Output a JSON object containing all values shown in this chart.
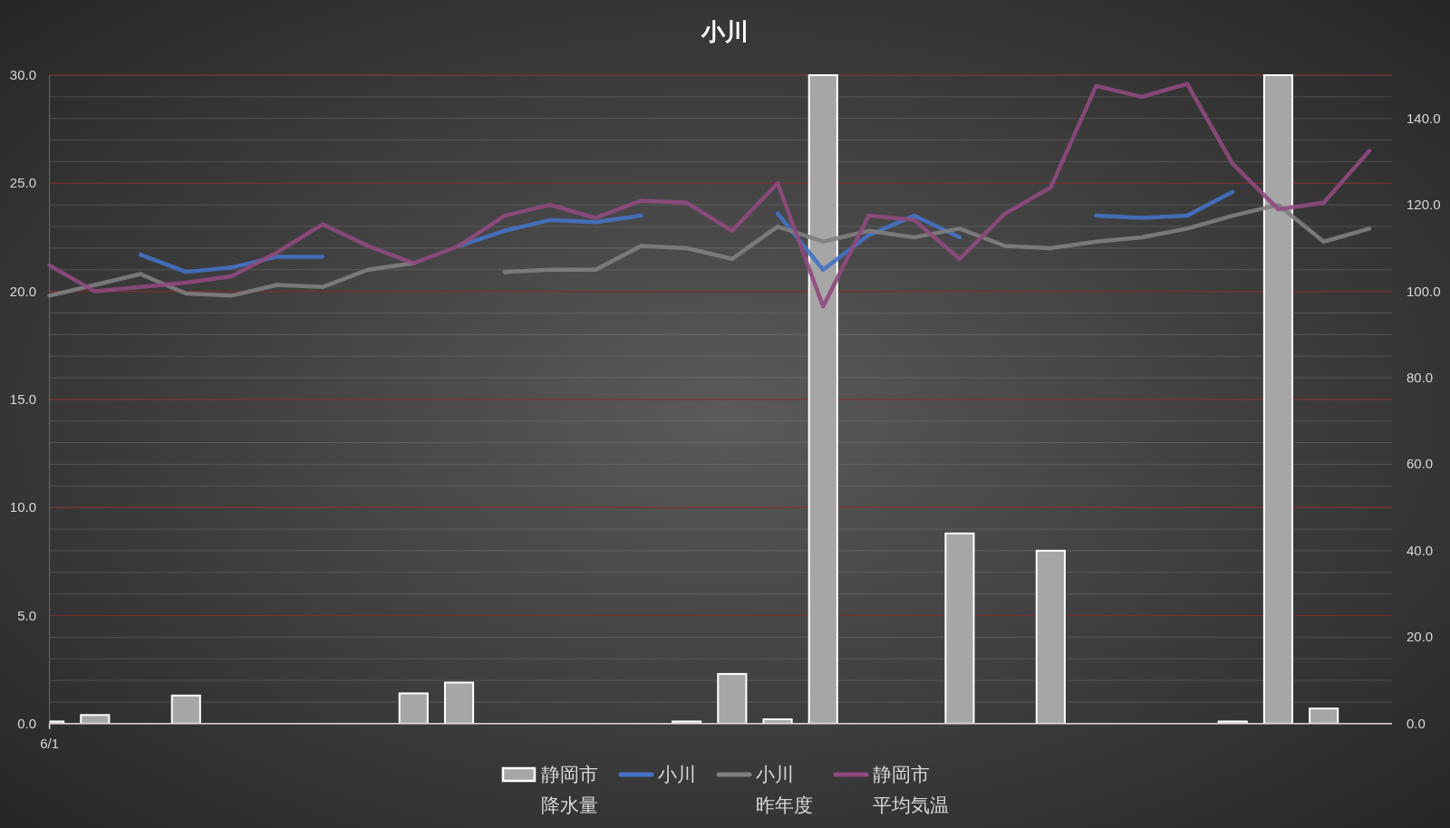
{
  "chart_data": {
    "type": "line",
    "title": "小川",
    "categories": [
      "6/1",
      null,
      null,
      null,
      null,
      null,
      null,
      null,
      null,
      null,
      null,
      null,
      null,
      null,
      null,
      null,
      null,
      null,
      null,
      null,
      null,
      null,
      null,
      null,
      null,
      null,
      null,
      null,
      null,
      null
    ],
    "ylim": [
      0,
      30
    ],
    "yticks": [
      {
        "value": 0,
        "label": "0.0"
      },
      {
        "value": 5,
        "label": "5.0"
      },
      {
        "value": 10,
        "label": "10.0"
      },
      {
        "value": 15,
        "label": "15.0"
      },
      {
        "value": 20,
        "label": "20.0"
      },
      {
        "value": 25,
        "label": "25.0"
      },
      {
        "value": 30,
        "label": "30.0"
      }
    ],
    "y2lim": [
      0,
      150
    ],
    "y2ticks": [
      {
        "value": 0,
        "label": "0.0"
      },
      {
        "value": 20,
        "label": "20.0"
      },
      {
        "value": 40,
        "label": "40.0"
      },
      {
        "value": 60,
        "label": "60.0"
      },
      {
        "value": 80,
        "label": "80.0"
      },
      {
        "value": 100,
        "label": "100.0"
      },
      {
        "value": 120,
        "label": "120.0"
      },
      {
        "value": 140,
        "label": "140.0"
      }
    ],
    "grid": "y",
    "legend": "bottom",
    "series": [
      {
        "name": "静岡市降水量",
        "type": "bar",
        "axis": "y2",
        "color": "#a6a6a6",
        "values": [
          0.5,
          2.0,
          null,
          6.5,
          null,
          null,
          null,
          null,
          7.0,
          9.5,
          null,
          null,
          null,
          null,
          0.5,
          11.5,
          1.0,
          150,
          null,
          null,
          44.0,
          null,
          40.0,
          null,
          null,
          null,
          0.5,
          150,
          3.5,
          null
        ]
      },
      {
        "name": "小川",
        "color": "#4472c4",
        "values": [
          null,
          null,
          21.7,
          20.9,
          21.1,
          21.6,
          21.6,
          null,
          null,
          22.1,
          22.8,
          23.3,
          23.2,
          23.5,
          null,
          null,
          23.6,
          21.0,
          22.6,
          23.5,
          22.5,
          null,
          null,
          23.5,
          23.4,
          23.5,
          24.6,
          null,
          null,
          null
        ]
      },
      {
        "name": "小川昨年度",
        "color": "#7f7f7f",
        "values": [
          19.8,
          20.3,
          20.8,
          19.9,
          19.8,
          20.3,
          20.2,
          21.0,
          21.3,
          null,
          20.9,
          21.0,
          21.0,
          22.1,
          22.0,
          21.5,
          23.0,
          22.3,
          22.8,
          22.5,
          22.9,
          22.1,
          22.0,
          22.3,
          22.5,
          22.9,
          23.5,
          24.0,
          22.3,
          22.9
        ]
      },
      {
        "name": "静岡市平均気温",
        "color": "#8f4a7d",
        "values": [
          21.2,
          20.0,
          20.2,
          20.4,
          20.7,
          21.8,
          23.1,
          22.1,
          21.3,
          22.1,
          23.5,
          24.0,
          23.4,
          24.2,
          24.1,
          22.8,
          25.0,
          19.3,
          23.5,
          23.3,
          21.5,
          23.6,
          24.8,
          29.5,
          29.0,
          29.6,
          25.9,
          23.8,
          24.1,
          26.5
        ]
      }
    ]
  }
}
